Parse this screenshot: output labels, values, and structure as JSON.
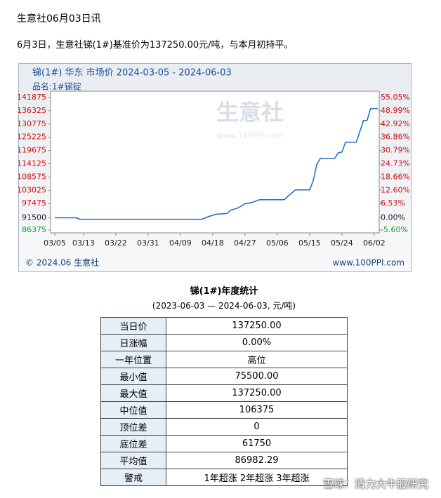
{
  "header": {
    "title": "生意社06月03日讯",
    "text": "6月3日，生意社锑(1#)基准价为137250.00元/吨，与本月初持平。"
  },
  "chart_data": {
    "type": "line",
    "title": "锑(1#) 华东 市场价 2024-03-05 - 2024-06-03",
    "subtitle": "品名:1#锑锭",
    "watermark": "生意社",
    "watermark_url": "www.100PPI.com",
    "footer_left": "© 2024.06 生意社",
    "footer_right": "www.100PPI.com",
    "color": "#1f6bbf",
    "x": [
      "03/05",
      "03/11",
      "03/12",
      "04/15",
      "04/16",
      "04/17",
      "04/19",
      "04/22",
      "04/23",
      "04/25",
      "04/27",
      "04/29",
      "05/01",
      "05/08",
      "05/09",
      "05/10",
      "05/11",
      "05/15",
      "05/16",
      "05/17",
      "05/18",
      "05/22",
      "05/23",
      "05/24",
      "05/25",
      "05/28",
      "05/29",
      "05/30",
      "05/31",
      "06/01",
      "06/03"
    ],
    "values": [
      91500,
      91500,
      90900,
      90900,
      91500,
      92100,
      93000,
      93300,
      94700,
      95600,
      97400,
      97950,
      99100,
      99100,
      100600,
      101750,
      103200,
      103200,
      107000,
      113800,
      116400,
      116400,
      118750,
      119050,
      123150,
      123150,
      127550,
      132250,
      132250,
      137250,
      137250
    ],
    "xlim": [
      "03/05",
      "06/03"
    ],
    "xticks": [
      "03/05",
      "03/13",
      "03/22",
      "03/31",
      "04/09",
      "04/18",
      "04/27",
      "05/06",
      "05/15",
      "05/24",
      "06/02"
    ],
    "ylim": [
      86375,
      141875
    ],
    "yticks": [
      141875,
      136325,
      130775,
      125225,
      119675,
      114125,
      108575,
      103025,
      97475,
      91500,
      86375
    ],
    "y2lim": [
      -5.6,
      55.05
    ],
    "y2ticks": [
      {
        "value": 55.05,
        "label": "55.05%"
      },
      {
        "value": 48.99,
        "label": "48.99%"
      },
      {
        "value": 42.92,
        "label": "42.92%"
      },
      {
        "value": 36.86,
        "label": "36.86%"
      },
      {
        "value": 30.79,
        "label": "30.79%"
      },
      {
        "value": 24.73,
        "label": "24.73%"
      },
      {
        "value": 18.66,
        "label": "18.66%"
      },
      {
        "value": 12.6,
        "label": "12.60%"
      },
      {
        "value": 6.53,
        "label": "6.53%"
      },
      {
        "value": 0,
        "label": "0.00%"
      },
      {
        "value": -5.6,
        "label": "-5.60%"
      }
    ]
  },
  "table": {
    "title": "锑(1#)年度统计",
    "subtitle": "(2023-06-03 — 2024-06-03, 元/吨)",
    "rows": [
      [
        "当日价",
        "137250.00"
      ],
      [
        "日涨幅",
        "0.00%"
      ],
      [
        "一年位置",
        "高位"
      ],
      [
        "最小值",
        "75500.00"
      ],
      [
        "最大值",
        "137250.00"
      ],
      [
        "中位值",
        "106375"
      ],
      [
        "顶位差",
        "0"
      ],
      [
        "底位差",
        "61750"
      ],
      [
        "平均值",
        "86982.29"
      ],
      [
        "警戒",
        "1年超涨 2年超涨 3年超涨"
      ]
    ]
  },
  "overlay": "雪球：清力大牛股研究"
}
